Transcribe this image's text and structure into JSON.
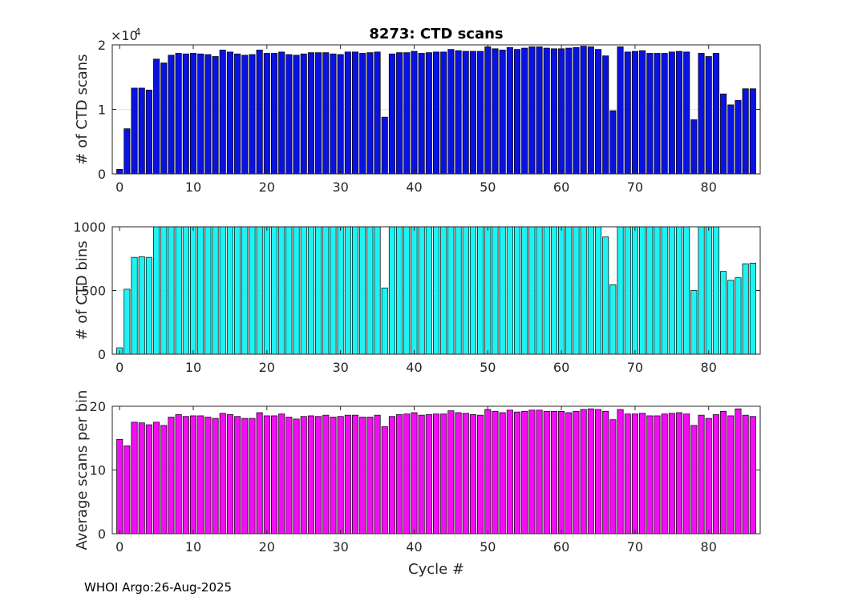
{
  "figure": {
    "title": "8273: CTD scans",
    "footer": "WHOI Argo:26-Aug-2025",
    "xlabel": "Cycle #"
  },
  "chart_data": [
    {
      "type": "bar",
      "title": "8273: CTD scans",
      "xlabel": "",
      "ylabel": "# of CTD scans",
      "exponent_label": "×10",
      "exponent": "4",
      "color": "#0a12e0",
      "xlim": [
        -1,
        87
      ],
      "ylim": [
        0,
        2
      ],
      "yticks": [
        0,
        1,
        2
      ],
      "xticks": [
        0,
        10,
        20,
        30,
        40,
        50,
        60,
        70,
        80
      ],
      "x": [
        0,
        1,
        2,
        3,
        4,
        5,
        6,
        7,
        8,
        9,
        10,
        11,
        12,
        13,
        14,
        15,
        16,
        17,
        18,
        19,
        20,
        21,
        22,
        23,
        24,
        25,
        26,
        27,
        28,
        29,
        30,
        31,
        32,
        33,
        34,
        35,
        36,
        37,
        38,
        39,
        40,
        41,
        42,
        43,
        44,
        45,
        46,
        47,
        48,
        49,
        50,
        51,
        52,
        53,
        54,
        55,
        56,
        57,
        58,
        59,
        60,
        61,
        62,
        63,
        64,
        65,
        66,
        67,
        68,
        69,
        70,
        71,
        72,
        73,
        74,
        75,
        76,
        77,
        78,
        79,
        80,
        81,
        82,
        83,
        84,
        85,
        86
      ],
      "values": [
        0.07,
        0.7,
        1.33,
        1.33,
        1.3,
        1.78,
        1.72,
        1.84,
        1.87,
        1.86,
        1.87,
        1.86,
        1.85,
        1.82,
        1.92,
        1.89,
        1.86,
        1.84,
        1.85,
        1.92,
        1.87,
        1.87,
        1.89,
        1.85,
        1.84,
        1.86,
        1.88,
        1.88,
        1.88,
        1.86,
        1.85,
        1.89,
        1.89,
        1.87,
        1.88,
        1.89,
        0.88,
        1.86,
        1.88,
        1.88,
        1.9,
        1.87,
        1.88,
        1.89,
        1.89,
        1.93,
        1.91,
        1.9,
        1.9,
        1.9,
        1.97,
        1.94,
        1.92,
        1.96,
        1.93,
        1.95,
        1.97,
        1.97,
        1.95,
        1.94,
        1.94,
        1.95,
        1.96,
        1.98,
        1.97,
        1.93,
        1.83,
        0.98,
        1.97,
        1.89,
        1.9,
        1.91,
        1.87,
        1.87,
        1.87,
        1.89,
        1.9,
        1.89,
        0.84,
        1.87,
        1.82,
        1.87,
        1.24,
        1.07,
        1.14,
        1.32,
        1.32
      ]
    },
    {
      "type": "bar",
      "title": "",
      "xlabel": "",
      "ylabel": "# of CTD bins",
      "color": "#1ef2f2",
      "xlim": [
        -1,
        87
      ],
      "ylim": [
        0,
        1000
      ],
      "yticks": [
        0,
        500,
        1000
      ],
      "xticks": [
        0,
        10,
        20,
        30,
        40,
        50,
        60,
        70,
        80
      ],
      "x": [
        0,
        1,
        2,
        3,
        4,
        5,
        6,
        7,
        8,
        9,
        10,
        11,
        12,
        13,
        14,
        15,
        16,
        17,
        18,
        19,
        20,
        21,
        22,
        23,
        24,
        25,
        26,
        27,
        28,
        29,
        30,
        31,
        32,
        33,
        34,
        35,
        36,
        37,
        38,
        39,
        40,
        41,
        42,
        43,
        44,
        45,
        46,
        47,
        48,
        49,
        50,
        51,
        52,
        53,
        54,
        55,
        56,
        57,
        58,
        59,
        60,
        61,
        62,
        63,
        64,
        65,
        66,
        67,
        68,
        69,
        70,
        71,
        72,
        73,
        74,
        75,
        76,
        77,
        78,
        79,
        80,
        81,
        82,
        83,
        84,
        85,
        86
      ],
      "values": [
        50,
        510,
        760,
        765,
        760,
        1000,
        1000,
        1000,
        1000,
        1000,
        1000,
        1000,
        1000,
        1000,
        1000,
        1000,
        1000,
        1000,
        1000,
        1000,
        1000,
        1000,
        1000,
        1000,
        1000,
        1000,
        1000,
        1000,
        1000,
        1000,
        1000,
        1000,
        1000,
        1000,
        1000,
        1000,
        520,
        1000,
        1000,
        1000,
        1000,
        1000,
        1000,
        1000,
        1000,
        1000,
        1000,
        1000,
        1000,
        1000,
        1000,
        1000,
        1000,
        1000,
        1000,
        1000,
        1000,
        1000,
        1000,
        1000,
        1000,
        1000,
        1000,
        1000,
        1000,
        1000,
        920,
        545,
        1000,
        1000,
        1000,
        1000,
        1000,
        1000,
        1000,
        1000,
        1000,
        1000,
        500,
        1000,
        1000,
        1000,
        650,
        580,
        600,
        710,
        715
      ]
    },
    {
      "type": "bar",
      "title": "",
      "xlabel": "Cycle #",
      "ylabel": "Average scans per bin",
      "color": "#f20ef2",
      "xlim": [
        -1,
        87
      ],
      "ylim": [
        0,
        20
      ],
      "yticks": [
        0,
        10,
        20
      ],
      "xticks": [
        0,
        10,
        20,
        30,
        40,
        50,
        60,
        70,
        80
      ],
      "x": [
        0,
        1,
        2,
        3,
        4,
        5,
        6,
        7,
        8,
        9,
        10,
        11,
        12,
        13,
        14,
        15,
        16,
        17,
        18,
        19,
        20,
        21,
        22,
        23,
        24,
        25,
        26,
        27,
        28,
        29,
        30,
        31,
        32,
        33,
        34,
        35,
        36,
        37,
        38,
        39,
        40,
        41,
        42,
        43,
        44,
        45,
        46,
        47,
        48,
        49,
        50,
        51,
        52,
        53,
        54,
        55,
        56,
        57,
        58,
        59,
        60,
        61,
        62,
        63,
        64,
        65,
        66,
        67,
        68,
        69,
        70,
        71,
        72,
        73,
        74,
        75,
        76,
        77,
        78,
        79,
        80,
        81,
        82,
        83,
        84,
        85,
        86
      ],
      "values": [
        14.8,
        13.8,
        17.5,
        17.4,
        17.1,
        17.5,
        17.0,
        18.3,
        18.7,
        18.4,
        18.5,
        18.5,
        18.3,
        18.1,
        18.9,
        18.7,
        18.4,
        18.1,
        18.1,
        19.0,
        18.5,
        18.5,
        18.8,
        18.3,
        18.0,
        18.4,
        18.5,
        18.4,
        18.6,
        18.3,
        18.4,
        18.6,
        18.6,
        18.3,
        18.3,
        18.6,
        16.8,
        18.4,
        18.7,
        18.8,
        19.0,
        18.6,
        18.7,
        18.8,
        18.8,
        19.3,
        19.0,
        18.9,
        18.7,
        18.6,
        19.5,
        19.2,
        19.0,
        19.4,
        19.1,
        19.2,
        19.4,
        19.4,
        19.2,
        19.2,
        19.2,
        19.0,
        19.2,
        19.5,
        19.6,
        19.5,
        19.2,
        17.9,
        19.5,
        18.8,
        18.8,
        18.9,
        18.5,
        18.5,
        18.8,
        18.9,
        19.0,
        18.8,
        17.0,
        18.6,
        18.1,
        18.7,
        19.2,
        18.5,
        19.6,
        18.6,
        18.4
      ]
    }
  ]
}
